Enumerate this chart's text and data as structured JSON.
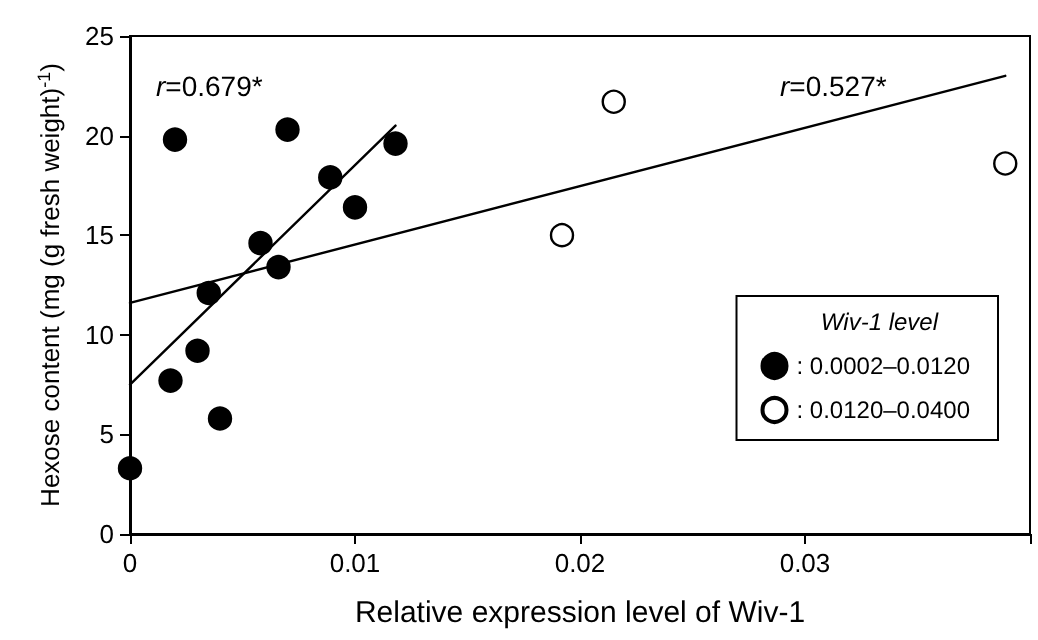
{
  "chart_data": {
    "type": "scatter",
    "xlabel": "Relative expression level of Wiv-1",
    "ylabel": "Hexose content (mg (g fresh weight)$^{-1}$)",
    "legend_title": "Wiv-1 level",
    "legend": "bottom right",
    "grid": false,
    "marker": "circle",
    "xlim": [
      0,
      0.04
    ],
    "xticks": [
      0,
      0.01,
      0.02,
      0.03,
      {
        "value": 0.04,
        "label": null
      }
    ],
    "ylim": [
      0,
      25
    ],
    "yticks": [
      0,
      5,
      10,
      15,
      20,
      25
    ],
    "series": [
      {
        "name": ": 0.0002–0.0120",
        "color": "#000000",
        "x": [
          0,
          0.0018,
          0.003,
          0.004,
          0.0035,
          0.002,
          0.0058,
          0.0066,
          0.007,
          0.0089,
          0.01,
          0.0118
        ],
        "values": [
          3.3,
          7.7,
          9.2,
          5.8,
          12.1,
          19.8,
          14.6,
          13.4,
          20.3,
          17.9,
          16.4,
          19.6
        ]
      },
      {
        "name": ": 0.0120–0.0400",
        "color": "#ffffff",
        "x": [
          0.0192,
          0.0215,
          0.0389
        ],
        "values": [
          15.0,
          21.7,
          18.6
        ]
      },
      {
        "type": "line",
        "color": "#000000",
        "marker": "none",
        "x": [
          0,
          0.0118
        ],
        "values": [
          7.5,
          20.5
        ]
      },
      {
        "type": "line",
        "color": "#000000",
        "marker": "none",
        "x": [
          0,
          0.0389
        ],
        "values": [
          11.6,
          23.0
        ]
      }
    ],
    "annotations": [
      "r=0.679*",
      "r=0.527*"
    ]
  }
}
